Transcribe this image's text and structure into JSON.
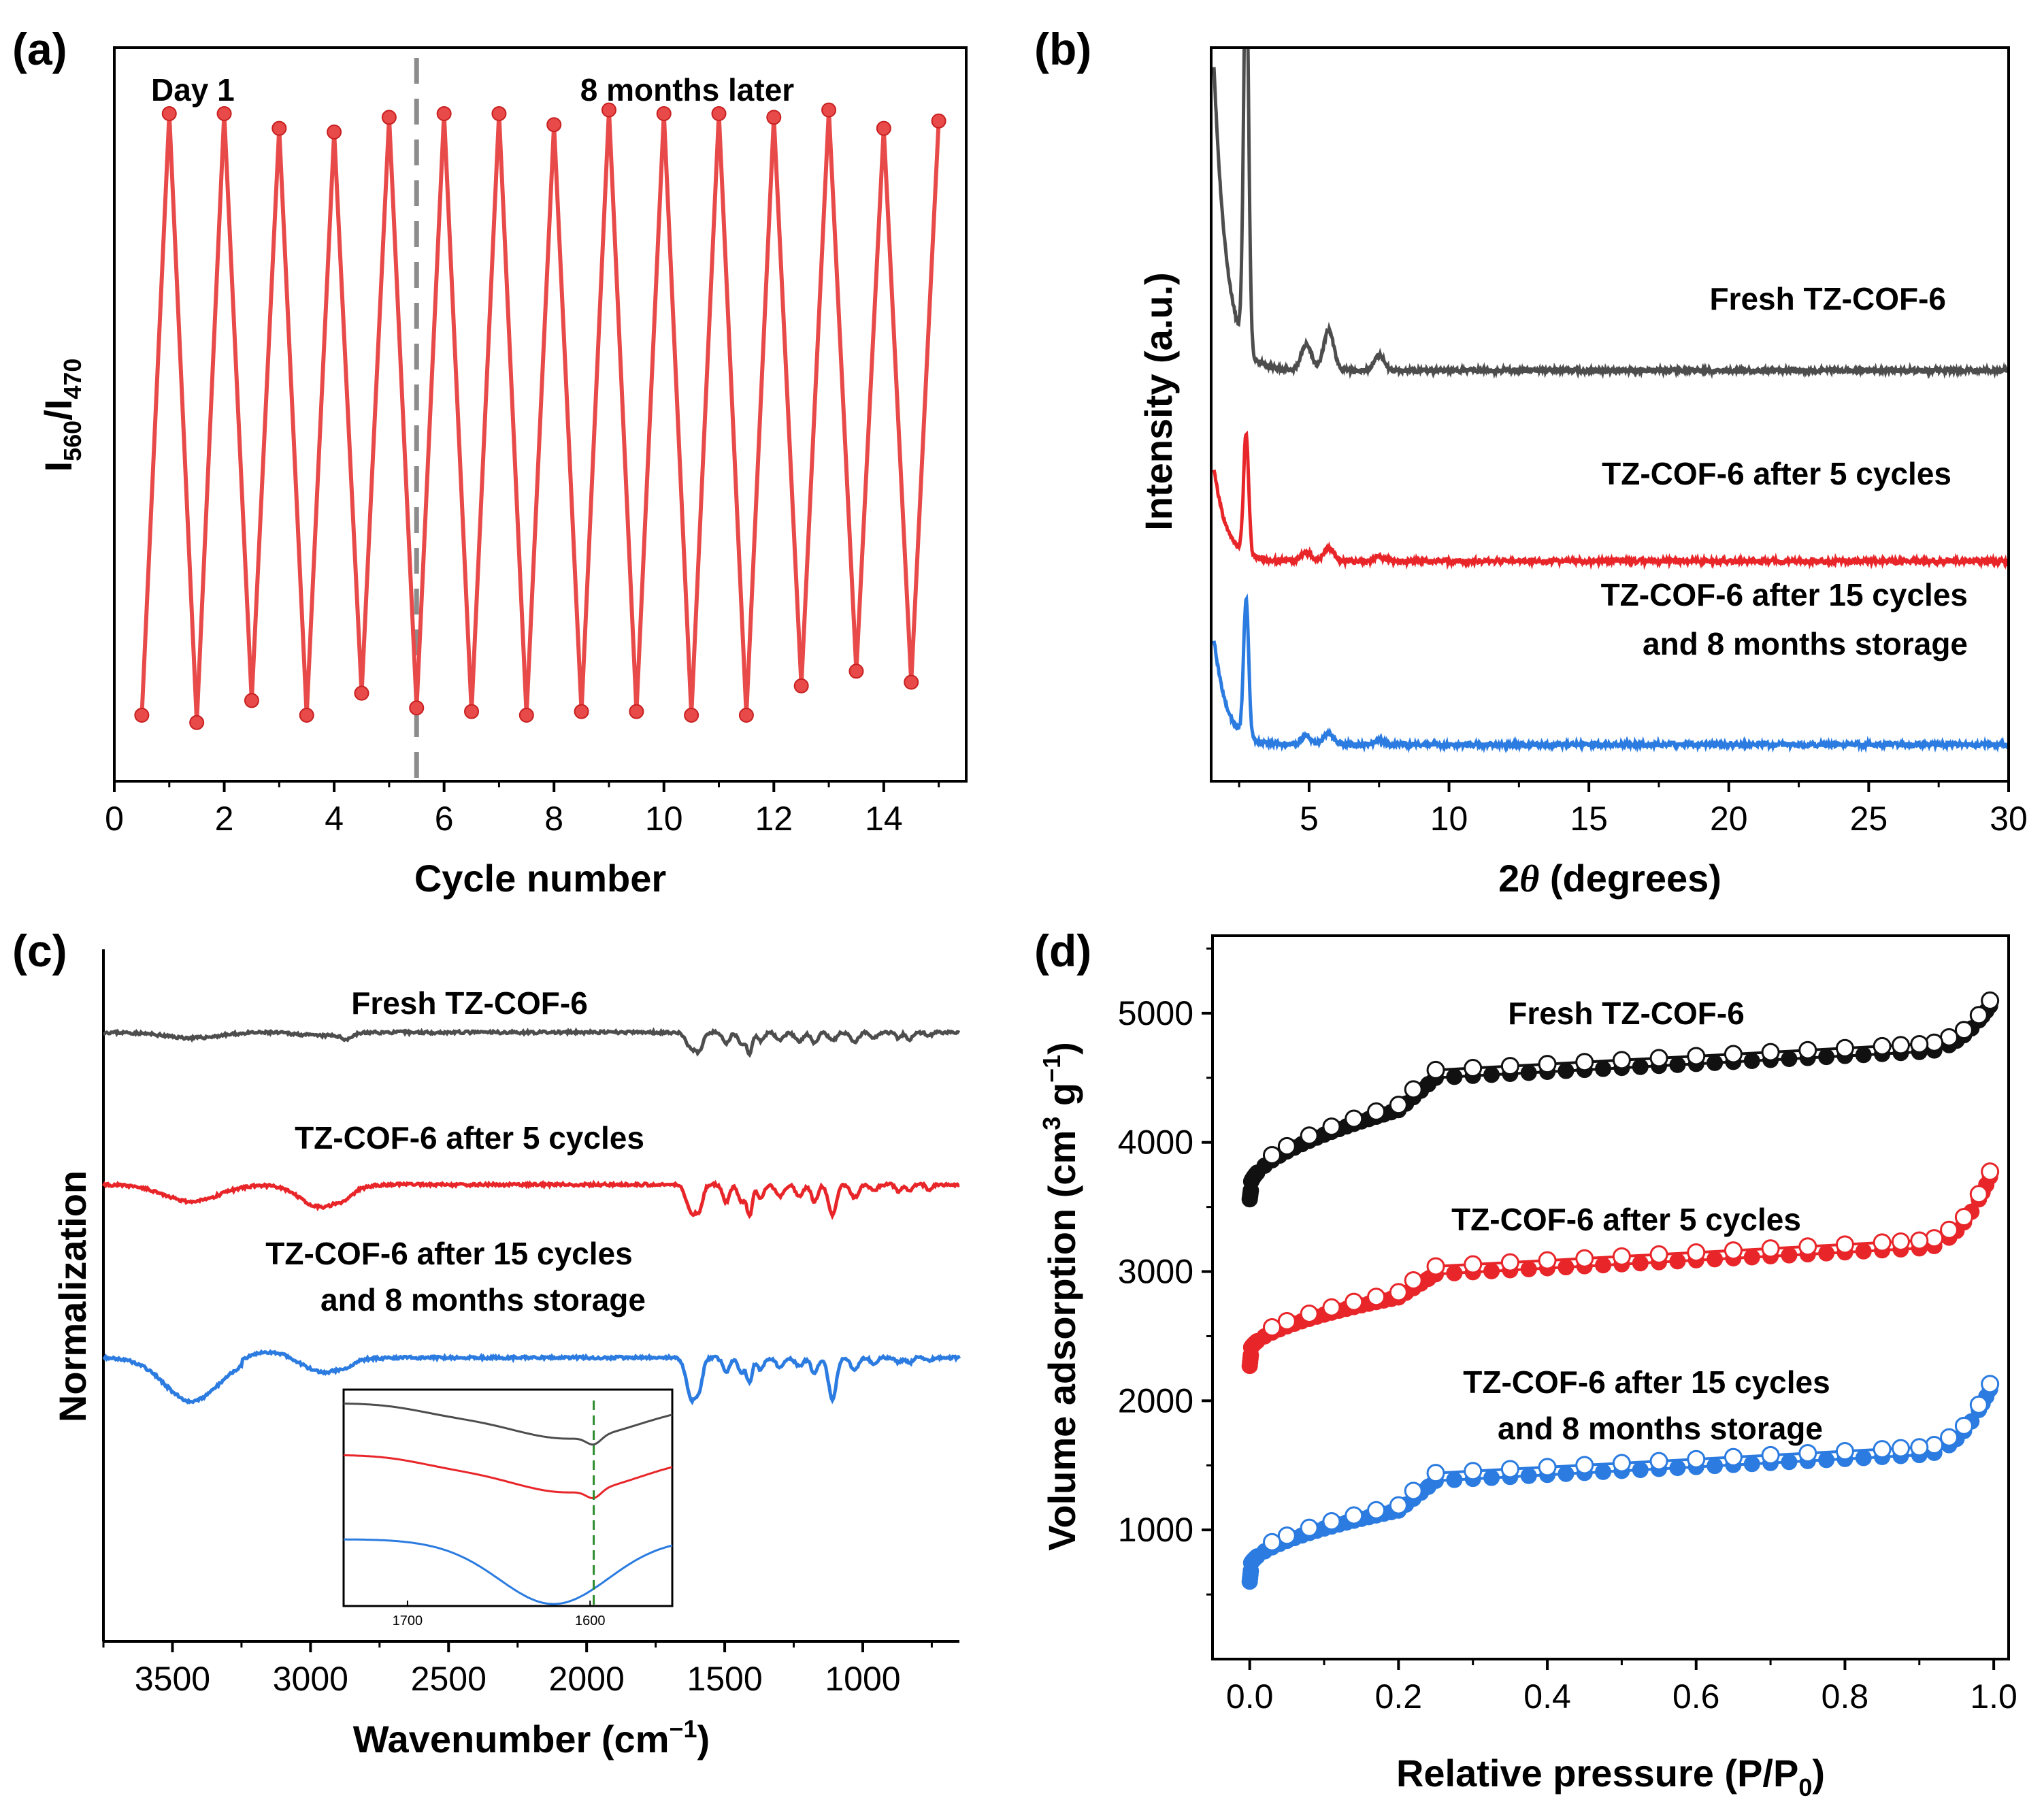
{
  "colors": {
    "gray": "#4d4d4d",
    "red": "#e8262a",
    "blue": "#2b7be0",
    "black": "#111111",
    "ratio_red": "#e84a4a",
    "green": "#2a8a2a",
    "divider": "#8c8c8c"
  },
  "chart_data": [
    {
      "id": "a",
      "panel_label": "(a)",
      "type": "line",
      "title": "",
      "xlabel": "Cycle number",
      "ylabel_main": "I",
      "ylabel_sub1": "560",
      "ylabel_mid": "/I",
      "ylabel_sub2": "470",
      "xlim": [
        0,
        15.5
      ],
      "ylim": [
        0,
        1
      ],
      "xticks": [
        "0",
        "2",
        "4",
        "6",
        "8",
        "10",
        "12",
        "14"
      ],
      "annotations": {
        "left": "Day 1",
        "right": "8 months later"
      },
      "divider_x": 5.5,
      "x": [
        0.5,
        1,
        1.5,
        2,
        2.5,
        3,
        3.5,
        4,
        4.5,
        5,
        5.5,
        6,
        6.5,
        7,
        7.5,
        8,
        8.5,
        9,
        9.5,
        10,
        10.5,
        11,
        11.5,
        12,
        12.5,
        13,
        13.5,
        14,
        14.5,
        15
      ],
      "values": [
        0.09,
        0.91,
        0.08,
        0.91,
        0.11,
        0.89,
        0.09,
        0.885,
        0.12,
        0.905,
        0.1,
        0.91,
        0.095,
        0.91,
        0.09,
        0.895,
        0.095,
        0.915,
        0.095,
        0.91,
        0.09,
        0.91,
        0.09,
        0.905,
        0.13,
        0.915,
        0.15,
        0.89,
        0.135,
        0.9
      ]
    },
    {
      "id": "b",
      "panel_label": "(b)",
      "type": "line",
      "xlabel": "2θ (degrees)",
      "xlabel_theta": "θ",
      "xlabel_pre": "2",
      "xlabel_post": "(degrees)",
      "ylabel": "Intensity (a.u.)",
      "xlim": [
        1.5,
        30
      ],
      "xticks": [
        "5",
        "10",
        "15",
        "20",
        "25",
        "30"
      ],
      "series": [
        {
          "name": "Fresh TZ-COF-6",
          "label_lines": [
            "Fresh TZ-COF-6"
          ],
          "baseline": 0.56,
          "main_peak": 1.05,
          "minor_peaks": [
            [
              4.9,
              0.035
            ],
            [
              5.7,
              0.055
            ],
            [
              7.5,
              0.02
            ]
          ],
          "color_key": "gray"
        },
        {
          "name": "TZ-COF-6 after 5 cycles",
          "label_lines": [
            "TZ-COF-6 after 5 cycles"
          ],
          "baseline": 0.3,
          "main_peak": 0.45,
          "minor_peaks": [
            [
              4.9,
              0.012
            ],
            [
              5.7,
              0.018
            ],
            [
              7.5,
              0.006
            ]
          ],
          "color_key": "red"
        },
        {
          "name": "TZ-COF-6 after 15 cycles and 8 months storage",
          "label_lines": [
            "TZ-COF-6 after 15 cycles",
            "and 8 months storage"
          ],
          "baseline": 0.05,
          "main_peak": 0.22,
          "minor_peaks": [
            [
              4.9,
              0.012
            ],
            [
              5.7,
              0.015
            ],
            [
              7.5,
              0.005
            ]
          ],
          "color_key": "blue"
        }
      ]
    },
    {
      "id": "c",
      "panel_label": "(c)",
      "type": "line",
      "xlabel_main": "Wavenumber (cm",
      "xlabel_sup": "−1",
      "xlabel_end": ")",
      "ylabel": "Normalization",
      "xlim": [
        3750,
        650
      ],
      "xticks": [
        "3500",
        "3000",
        "2500",
        "2000",
        "1500",
        "1000"
      ],
      "series": [
        {
          "name": "Fresh TZ-COF-6",
          "label_lines": [
            "Fresh TZ-COF-6"
          ],
          "offset": 0.88,
          "color_key": "gray",
          "scale": 0.6
        },
        {
          "name": "TZ-COF-6 after 5 cycles",
          "label_lines": [
            "TZ-COF-6 after 5 cycles"
          ],
          "offset": 0.66,
          "color_key": "red",
          "scale": 0.9
        },
        {
          "name": "TZ-COF-6 after 15 cycles and 8 months storage",
          "label_lines": [
            "TZ-COF-6 after 15 cycles",
            "and 8 months storage"
          ],
          "offset": 0.41,
          "color_key": "blue",
          "scale": 1.0
        }
      ],
      "inset": {
        "xlim": [
          1735,
          1555
        ],
        "xticks": [
          "1700",
          "1600"
        ],
        "marker_x": 1598
      }
    },
    {
      "id": "d",
      "panel_label": "(d)",
      "type": "scatter",
      "xlabel_main": "Relative pressure (P/P",
      "xlabel_sub": "0",
      "xlabel_end": ")",
      "ylabel_main": "Volume adsorption (cm",
      "ylabel_sup1": "3",
      "ylabel_mid": " g",
      "ylabel_sup2": "−1",
      "ylabel_end": ")",
      "xlim": [
        -0.05,
        1.02
      ],
      "ylim": [
        0,
        5600
      ],
      "xticks": [
        "0.0",
        "0.2",
        "0.4",
        "0.6",
        "0.8",
        "1.0"
      ],
      "yticks": [
        "1000",
        "2000",
        "3000",
        "4000",
        "5000"
      ],
      "series": [
        {
          "name": "Fresh TZ-COF-6",
          "label_lines": [
            "Fresh TZ-COF-6"
          ],
          "start": 3560,
          "knee_low": 3800,
          "pre_step": 4250,
          "plateau": 4500,
          "plateau_end": 4700,
          "end": 5100,
          "color_key": "black"
        },
        {
          "name": "TZ-COF-6 after 5 cycles",
          "label_lines": [
            "TZ-COF-6 after 5 cycles"
          ],
          "start": 2270,
          "knee_low": 2530,
          "pre_step": 2800,
          "plateau": 2980,
          "plateau_end": 3180,
          "end": 3800,
          "color_key": "red"
        },
        {
          "name": "TZ-COF-6 after 15 cycles and 8 months storage",
          "label_lines": [
            "TZ-COF-6 after 15 cycles",
            "and 8 months storage"
          ],
          "start": 600,
          "knee_low": 860,
          "pre_step": 1150,
          "plateau": 1380,
          "plateau_end": 1580,
          "end": 2150,
          "color_key": "blue"
        }
      ]
    }
  ]
}
